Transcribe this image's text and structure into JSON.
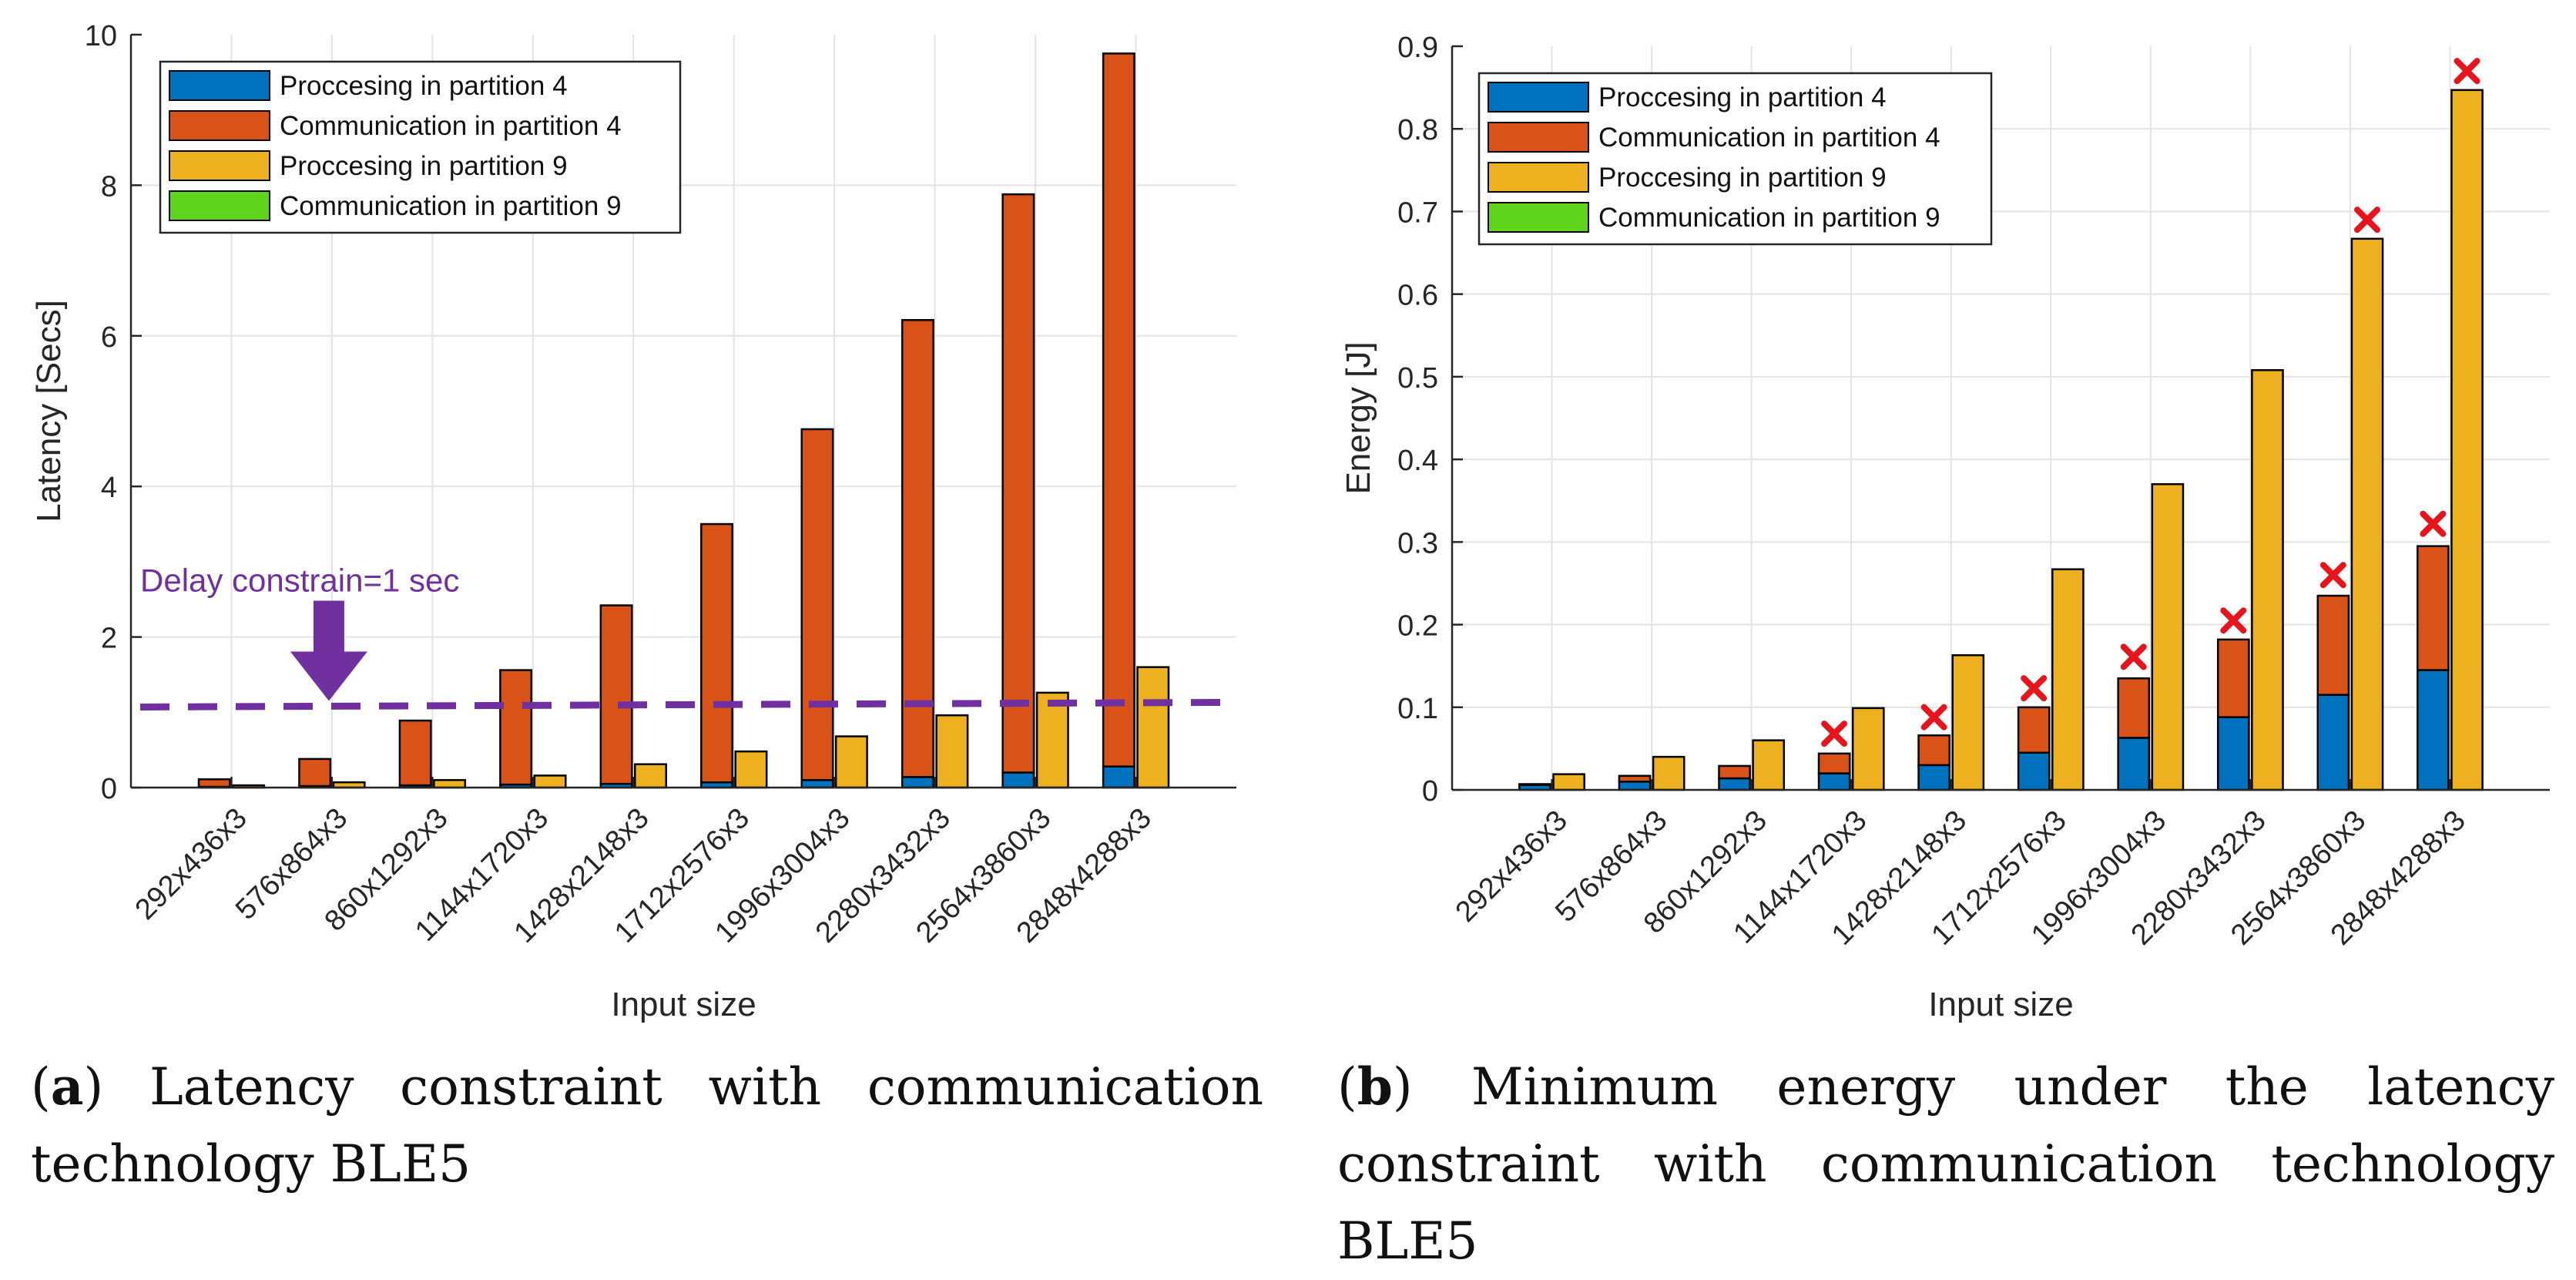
{
  "chart_data": [
    {
      "type": "bar",
      "stacking": "stacked pairs",
      "categories": [
        "292x436x3",
        "576x864x3",
        "860x1292x3",
        "1144x1720x3",
        "1428x2148x3",
        "1712x2576x3",
        "1996x3004x3",
        "2280x3432x3",
        "2564x3860x3",
        "2848x4288x3"
      ],
      "xlabel": "Input size",
      "ylabel": "Latency [Secs]",
      "ylim": [
        0,
        10
      ],
      "yticks": [
        0,
        2,
        4,
        6,
        8,
        10
      ],
      "ytick_labels": [
        "0",
        "2",
        "4",
        "6",
        "8",
        "10"
      ],
      "grid": true,
      "legend_position": "top-left",
      "series": [
        {
          "name": "Proccesing in partition 4",
          "color": "#0072BD",
          "group": "partition 4",
          "values": [
            0.01,
            0.02,
            0.03,
            0.04,
            0.05,
            0.07,
            0.1,
            0.14,
            0.2,
            0.28
          ]
        },
        {
          "name": "Communication in partition 4",
          "color": "#D95319",
          "group": "partition 4",
          "values": [
            0.1,
            0.36,
            0.86,
            1.52,
            2.37,
            3.43,
            4.66,
            6.07,
            7.68,
            9.47
          ]
        },
        {
          "name": "Proccesing in partition 9",
          "color": "#EDB120",
          "group": "partition 9",
          "values": [
            0.03,
            0.07,
            0.1,
            0.16,
            0.31,
            0.48,
            0.68,
            0.96,
            1.26,
            1.6
          ]
        },
        {
          "name": "Communication in partition 9",
          "color": "#5FD41C",
          "group": "partition 9",
          "values": [
            0,
            0,
            0,
            0,
            0,
            0,
            0,
            0,
            0,
            0
          ]
        }
      ],
      "annotations": [
        {
          "type": "hline",
          "y": 1.07,
          "style": "dashed",
          "color": "#7030A0",
          "label": "Delay constrain=1 sec",
          "arrow_at_category": 1
        }
      ]
    },
    {
      "type": "bar",
      "stacking": "stacked pairs",
      "categories": [
        "292x436x3",
        "576x864x3",
        "860x1292x3",
        "1144x1720x3",
        "1428x2148x3",
        "1712x2576x3",
        "1996x3004x3",
        "2280x3432x3",
        "2564x3860x3",
        "2848x4288x3"
      ],
      "xlabel": "Input size",
      "ylabel": "Energy [J]",
      "ylim": [
        0,
        0.9
      ],
      "yticks": [
        0,
        0.1,
        0.2,
        0.3,
        0.4,
        0.5,
        0.6,
        0.7,
        0.8,
        0.9
      ],
      "ytick_labels": [
        "0",
        "0.1",
        "0.2",
        "0.3",
        "0.4",
        "0.5",
        "0.6",
        "0.7",
        "0.8",
        "0.9"
      ],
      "grid": true,
      "legend_position": "top-left",
      "series": [
        {
          "name": "Proccesing in partition 4",
          "color": "#0072BD",
          "group": "partition 4",
          "values": [
            0.006,
            0.01,
            0.014,
            0.02,
            0.03,
            0.045,
            0.063,
            0.088,
            0.115,
            0.145
          ]
        },
        {
          "name": "Communication in partition 4",
          "color": "#D95319",
          "group": "partition 4",
          "values": [
            0.001,
            0.007,
            0.015,
            0.024,
            0.036,
            0.055,
            0.072,
            0.094,
            0.12,
            0.15
          ]
        },
        {
          "name": "Proccesing in partition 9",
          "color": "#EDB120",
          "group": "partition 9",
          "values": [
            0.019,
            0.04,
            0.06,
            0.099,
            0.163,
            0.267,
            0.37,
            0.508,
            0.667,
            0.847
          ]
        },
        {
          "name": "Communication in partition 9",
          "color": "#5FD41C",
          "group": "partition 9",
          "values": [
            0,
            0,
            0,
            0,
            0,
            0,
            0,
            0,
            0,
            0
          ]
        }
      ],
      "markers": {
        "symbol": "x",
        "color": "#E8141C",
        "points": [
          {
            "category_index": 3,
            "group": "partition 4",
            "y": 0.068
          },
          {
            "category_index": 4,
            "group": "partition 4",
            "y": 0.088
          },
          {
            "category_index": 5,
            "group": "partition 4",
            "y": 0.123
          },
          {
            "category_index": 6,
            "group": "partition 4",
            "y": 0.161
          },
          {
            "category_index": 7,
            "group": "partition 4",
            "y": 0.205
          },
          {
            "category_index": 8,
            "group": "partition 4",
            "y": 0.26
          },
          {
            "category_index": 9,
            "group": "partition 4",
            "y": 0.322
          },
          {
            "category_index": 8,
            "group": "partition 9",
            "y": 0.69
          },
          {
            "category_index": 9,
            "group": "partition 9",
            "y": 0.87
          }
        ]
      }
    }
  ],
  "captions": {
    "a": {
      "label": "a",
      "text": "Latency constraint with communication technology BLE5"
    },
    "b": {
      "label": "b",
      "text": "Minimum energy under the latency constraint with communication technology BLE5"
    }
  }
}
